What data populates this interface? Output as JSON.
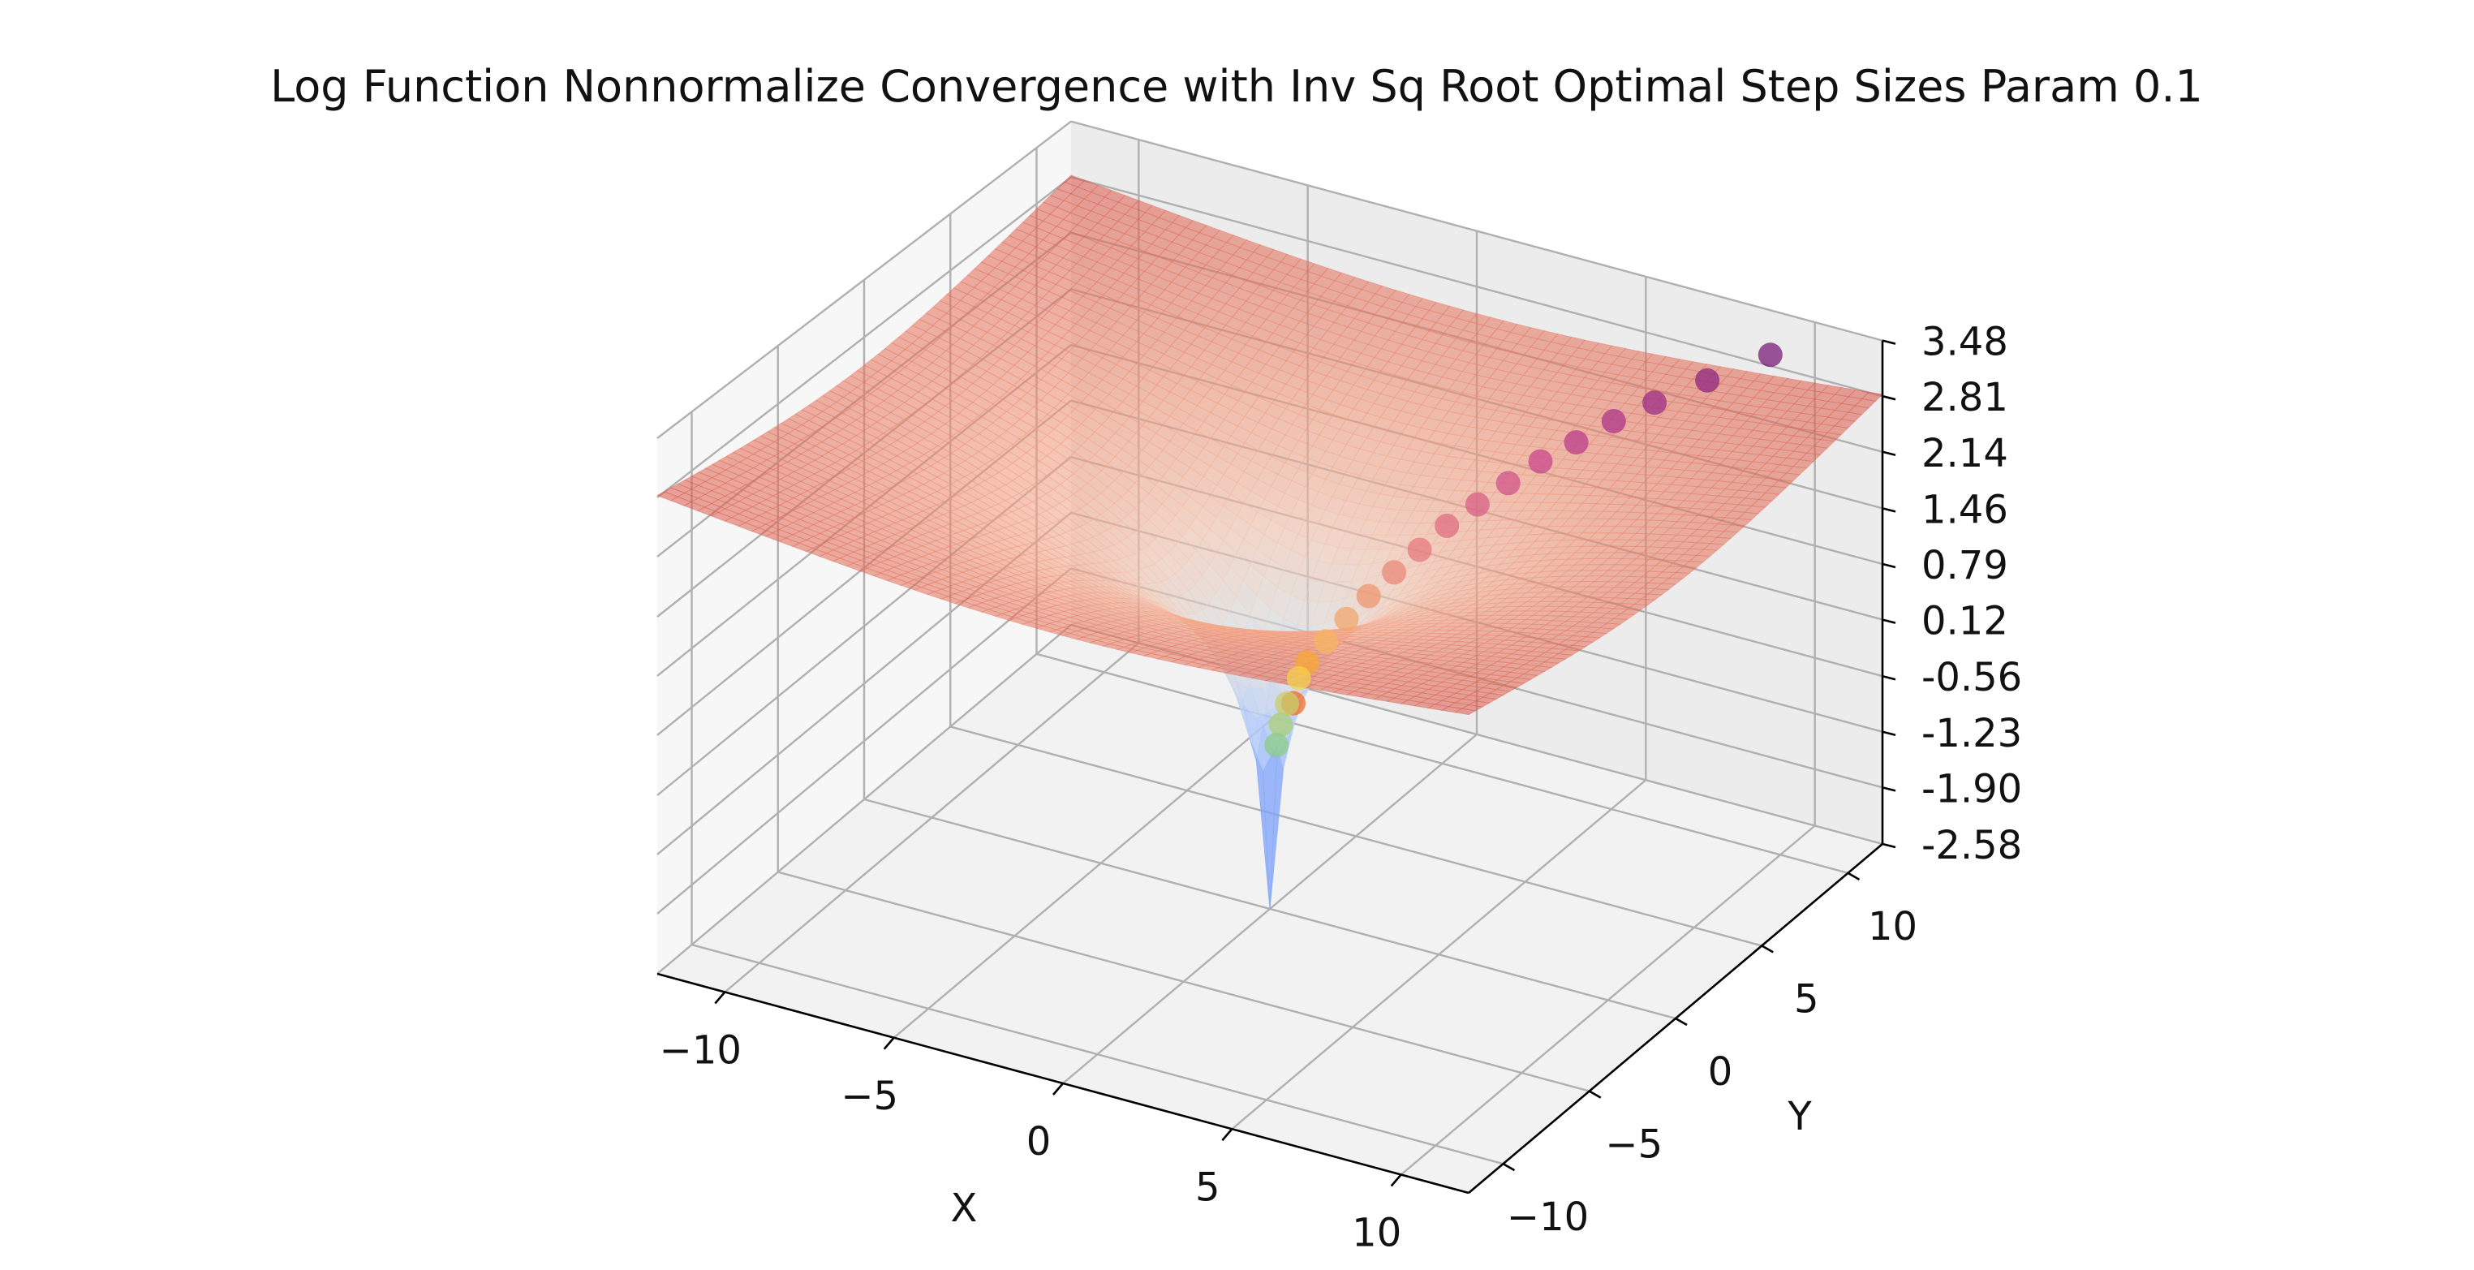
{
  "chart_data": {
    "type": "surface3d",
    "title": "Log Function Nonnormalize Convergence with Inv Sq Root Optimal Step Sizes Param 0.1",
    "xlabel": "X",
    "ylabel": "Y",
    "zlabel": "",
    "xlim": [
      -12,
      12
    ],
    "ylim": [
      -12,
      12
    ],
    "zlim": [
      -2.58,
      3.48
    ],
    "x_ticks": [
      "−10",
      "−5",
      "0",
      "5",
      "10"
    ],
    "x_tick_values": [
      -10,
      -5,
      0,
      5,
      10
    ],
    "y_ticks": [
      "−10",
      "−5",
      "0",
      "5",
      "10"
    ],
    "y_tick_values": [
      -10,
      -5,
      0,
      5,
      10
    ],
    "z_ticks": [
      "3.48",
      "2.81",
      "2.14",
      "1.46",
      "0.79",
      "0.12",
      "-0.56",
      "-1.23",
      "-1.90",
      "-2.58"
    ],
    "z_tick_values": [
      3.48,
      2.81,
      2.14,
      1.46,
      0.79,
      0.12,
      -0.56,
      -1.23,
      -1.9,
      -2.58
    ],
    "surface": {
      "function": "log(x^2 + y^2) / 2",
      "colormap": "coolwarm",
      "alpha": 0.5
    },
    "grid": true,
    "series": [
      {
        "type": "scatter3d",
        "points": [
          {
            "x": 9.6,
            "y": 10.2,
            "z": 3.33,
            "color": "#7a1f78"
          },
          {
            "x": 8.4,
            "y": 8.9,
            "z": 3.1,
            "color": "#8e2580"
          },
          {
            "x": 7.4,
            "y": 7.8,
            "z": 2.9,
            "color": "#9e2d85"
          },
          {
            "x": 6.6,
            "y": 7.0,
            "z": 2.72,
            "color": "#ad3589"
          },
          {
            "x": 5.9,
            "y": 6.2,
            "z": 2.52,
            "color": "#bb3e8b"
          },
          {
            "x": 5.2,
            "y": 5.5,
            "z": 2.33,
            "color": "#c8488b"
          },
          {
            "x": 4.6,
            "y": 4.8,
            "z": 2.12,
            "color": "#d25489"
          },
          {
            "x": 4.0,
            "y": 4.2,
            "z": 1.9,
            "color": "#da6086"
          },
          {
            "x": 3.4,
            "y": 3.6,
            "z": 1.68,
            "color": "#e06d82"
          },
          {
            "x": 2.9,
            "y": 3.0,
            "z": 1.44,
            "color": "#e57a7d"
          },
          {
            "x": 2.4,
            "y": 2.5,
            "z": 1.2,
            "color": "#ea8878"
          },
          {
            "x": 1.9,
            "y": 2.0,
            "z": 0.95,
            "color": "#ee9772"
          },
          {
            "x": 1.5,
            "y": 1.5,
            "z": 0.72,
            "color": "#f2a66b"
          },
          {
            "x": 1.1,
            "y": 1.1,
            "z": 0.48,
            "color": "#f6b462"
          },
          {
            "x": 0.8,
            "y": 0.6,
            "z": 0.28,
            "color": "#f8a833"
          },
          {
            "x": 0.5,
            "y": 0.7,
            "z": 0.05,
            "color": "#f4d04b"
          },
          {
            "x": 0.9,
            "y": -0.4,
            "z": -0.02,
            "color": "#f26a2a"
          },
          {
            "x": 0.3,
            "y": 0.4,
            "z": -0.22,
            "color": "#c9cf6a"
          },
          {
            "x": 0.2,
            "y": 0.25,
            "z": -0.45,
            "color": "#a9cf78"
          },
          {
            "x": 0.12,
            "y": 0.15,
            "z": -0.68,
            "color": "#8ccc86"
          }
        ]
      }
    ]
  }
}
